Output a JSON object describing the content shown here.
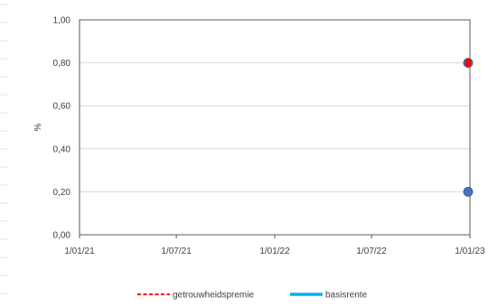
{
  "chart_data": {
    "type": "scatter",
    "title": "",
    "xlabel": "",
    "ylabel": "%",
    "x_ticks": [
      "1/01/21",
      "1/07/21",
      "1/01/22",
      "1/07/22",
      "1/01/23"
    ],
    "x_tick_dates": [
      "2021-01-01",
      "2021-07-01",
      "2022-01-01",
      "2022-07-01",
      "2023-01-01"
    ],
    "xlim": [
      "2021-01-01",
      "2023-01-01"
    ],
    "y_ticks": [
      "0,00",
      "0,20",
      "0,40",
      "0,60",
      "0,80",
      "1,00"
    ],
    "ylim": [
      0,
      1
    ],
    "grid": true,
    "legend_position": "bottom",
    "series": [
      {
        "name": "getrouwheidspremie",
        "legend_style": "dashed-line",
        "color": "#ff0000",
        "marker_color": "#ff0000",
        "points": [
          {
            "x": "2023-01-01",
            "y": 0.8
          }
        ]
      },
      {
        "name": "basisrente",
        "legend_style": "solid-line",
        "color": "#00b0f0",
        "marker_color": "#4472c4",
        "points": [
          {
            "x": "2023-01-01",
            "y": 0.8
          },
          {
            "x": "2023-01-01",
            "y": 0.2
          }
        ]
      }
    ]
  }
}
